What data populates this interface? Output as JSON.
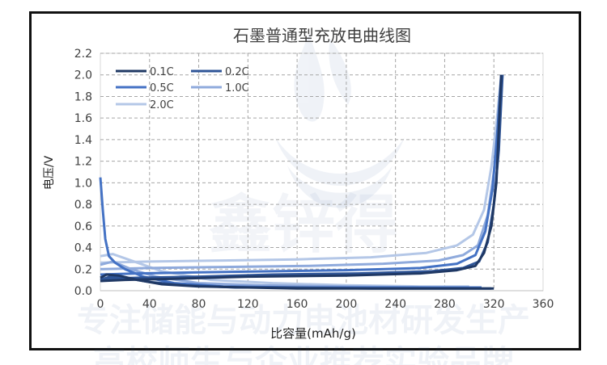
{
  "watermark": {
    "brand": "鑫锌得",
    "line1": "专注储能与动力电池材研发生产",
    "line2": "高校师生与企业推荐实验品牌"
  },
  "chart_data": {
    "type": "line",
    "title": "石墨普通型充放电曲线图",
    "xlabel": "比容量(mAh/g)",
    "ylabel": "电压/V",
    "xlim": [
      0,
      360
    ],
    "ylim": [
      0,
      2.2
    ],
    "xticks": [
      "0",
      "40",
      "80",
      "120",
      "160",
      "200",
      "240",
      "280",
      "320",
      "360"
    ],
    "yticks": [
      "0.0",
      "0.2",
      "0.4",
      "0.6",
      "0.8",
      "1.0",
      "1.2",
      "1.4",
      "1.6",
      "1.8",
      "2.0",
      "2.2"
    ],
    "grid": true,
    "legend_position": "top-left",
    "series": [
      {
        "name": "0.1C",
        "color": "#1f3864",
        "discharge": [
          [
            0,
            0.12
          ],
          [
            5,
            0.15
          ],
          [
            15,
            0.14
          ],
          [
            30,
            0.1
          ],
          [
            50,
            0.06
          ],
          [
            80,
            0.04
          ],
          [
            120,
            0.03
          ],
          [
            160,
            0.02
          ],
          [
            200,
            0.02
          ],
          [
            260,
            0.02
          ],
          [
            300,
            0.02
          ],
          [
            320,
            0.02
          ]
        ],
        "charge": [
          [
            0,
            0.09
          ],
          [
            20,
            0.1
          ],
          [
            60,
            0.11
          ],
          [
            120,
            0.13
          ],
          [
            200,
            0.14
          ],
          [
            260,
            0.16
          ],
          [
            290,
            0.19
          ],
          [
            305,
            0.23
          ],
          [
            312,
            0.35
          ],
          [
            318,
            0.6
          ],
          [
            322,
            1.0
          ],
          [
            326,
            2.0
          ]
        ]
      },
      {
        "name": "0.2C",
        "color": "#2f5597",
        "discharge": [
          [
            0,
            0.1
          ],
          [
            8,
            0.13
          ],
          [
            20,
            0.12
          ],
          [
            40,
            0.08
          ],
          [
            70,
            0.05
          ],
          [
            110,
            0.03
          ],
          [
            160,
            0.03
          ],
          [
            220,
            0.02
          ],
          [
            280,
            0.02
          ],
          [
            318,
            0.02
          ]
        ],
        "charge": [
          [
            0,
            0.11
          ],
          [
            30,
            0.12
          ],
          [
            80,
            0.13
          ],
          [
            140,
            0.15
          ],
          [
            210,
            0.16
          ],
          [
            270,
            0.18
          ],
          [
            295,
            0.21
          ],
          [
            308,
            0.27
          ],
          [
            315,
            0.45
          ],
          [
            320,
            0.8
          ],
          [
            324,
            1.3
          ],
          [
            327,
            2.0
          ]
        ]
      },
      {
        "name": "0.5C",
        "color": "#4472c4",
        "discharge": [
          [
            0,
            1.05
          ],
          [
            2,
            0.75
          ],
          [
            4,
            0.48
          ],
          [
            7,
            0.32
          ],
          [
            12,
            0.26
          ],
          [
            20,
            0.2
          ],
          [
            35,
            0.13
          ],
          [
            60,
            0.07
          ],
          [
            100,
            0.04
          ],
          [
            160,
            0.03
          ],
          [
            240,
            0.03
          ],
          [
            310,
            0.03
          ]
        ],
        "charge": [
          [
            0,
            0.15
          ],
          [
            30,
            0.16
          ],
          [
            80,
            0.17
          ],
          [
            140,
            0.18
          ],
          [
            200,
            0.19
          ],
          [
            260,
            0.21
          ],
          [
            290,
            0.25
          ],
          [
            305,
            0.33
          ],
          [
            313,
            0.55
          ],
          [
            319,
            0.95
          ],
          [
            323,
            1.5
          ],
          [
            326,
            2.0
          ]
        ]
      },
      {
        "name": "1.0C",
        "color": "#8faadc",
        "discharge": [
          [
            0,
            0.24
          ],
          [
            10,
            0.27
          ],
          [
            25,
            0.2
          ],
          [
            45,
            0.13
          ],
          [
            80,
            0.07
          ],
          [
            130,
            0.05
          ],
          [
            200,
            0.04
          ],
          [
            270,
            0.03
          ],
          [
            305,
            0.03
          ]
        ],
        "charge": [
          [
            0,
            0.2
          ],
          [
            40,
            0.21
          ],
          [
            100,
            0.22
          ],
          [
            170,
            0.23
          ],
          [
            230,
            0.25
          ],
          [
            275,
            0.28
          ],
          [
            295,
            0.33
          ],
          [
            307,
            0.42
          ],
          [
            315,
            0.7
          ],
          [
            320,
            1.1
          ],
          [
            324,
            1.6
          ],
          [
            327,
            2.0
          ]
        ]
      },
      {
        "name": "2.0C",
        "color": "#b4c7e7",
        "discharge": [
          [
            0,
            0.32
          ],
          [
            10,
            0.34
          ],
          [
            25,
            0.28
          ],
          [
            50,
            0.18
          ],
          [
            90,
            0.1
          ],
          [
            140,
            0.07
          ],
          [
            200,
            0.05
          ],
          [
            260,
            0.04
          ],
          [
            300,
            0.04
          ]
        ],
        "charge": [
          [
            0,
            0.26
          ],
          [
            40,
            0.27
          ],
          [
            100,
            0.28
          ],
          [
            160,
            0.29
          ],
          [
            220,
            0.31
          ],
          [
            265,
            0.35
          ],
          [
            290,
            0.42
          ],
          [
            303,
            0.52
          ],
          [
            312,
            0.75
          ],
          [
            318,
            1.15
          ],
          [
            323,
            1.65
          ],
          [
            326,
            2.0
          ]
        ]
      }
    ]
  }
}
